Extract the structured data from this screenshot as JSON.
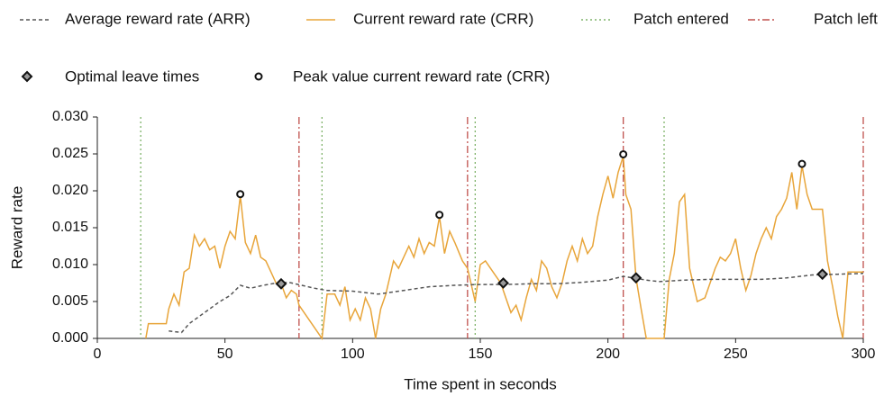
{
  "chart_data": {
    "type": "line",
    "x_label": "Time spent in seconds",
    "y_label": "Reward rate",
    "xlim": [
      0,
      300
    ],
    "ylim": [
      0,
      0.03
    ],
    "xticks": [
      0,
      50,
      100,
      150,
      200,
      250,
      300
    ],
    "yticks": [
      {
        "value": 0,
        "label": "0.000"
      },
      {
        "value": 0.005,
        "label": "0.005"
      },
      {
        "value": 0.01,
        "label": "0.010"
      },
      {
        "value": 0.015,
        "label": "0.015"
      },
      {
        "value": 0.02,
        "label": "0.020"
      },
      {
        "value": 0.025,
        "label": "0.025"
      },
      {
        "value": 0.03,
        "label": "0.030"
      }
    ],
    "series": [
      {
        "name": "Average reward rate (ARR)",
        "color": "#555555",
        "dash": "4 3",
        "x": [
          28,
          33,
          36,
          40,
          44,
          48,
          52,
          56,
          60,
          65,
          70,
          75,
          80,
          85,
          90,
          100,
          110,
          120,
          130,
          140,
          150,
          160,
          170,
          180,
          190,
          200,
          206,
          210,
          215,
          220,
          230,
          240,
          250,
          260,
          270,
          280,
          290,
          300
        ],
        "values": [
          0.001,
          0.0008,
          0.002,
          0.003,
          0.004,
          0.005,
          0.0058,
          0.0072,
          0.0068,
          0.0072,
          0.0075,
          0.0076,
          0.0072,
          0.0068,
          0.0065,
          0.0064,
          0.006,
          0.0065,
          0.007,
          0.0072,
          0.0073,
          0.0073,
          0.0074,
          0.0074,
          0.0076,
          0.0079,
          0.0084,
          0.0082,
          0.0079,
          0.0077,
          0.0079,
          0.008,
          0.008,
          0.008,
          0.0082,
          0.0086,
          0.0087,
          0.0088
        ]
      },
      {
        "name": "Current reward rate (CRR)",
        "color": "#e8a53a",
        "dash": "none",
        "x": [
          19,
          20,
          27,
          28,
          30,
          32,
          34,
          36,
          38,
          40,
          42,
          44,
          46,
          48,
          50,
          52,
          54,
          56,
          58,
          60,
          62,
          64,
          66,
          68,
          70,
          72,
          74,
          76,
          78,
          79,
          88,
          90,
          93,
          95,
          97,
          99,
          101,
          103,
          105,
          107,
          109,
          111,
          113,
          116,
          118,
          120,
          122,
          124,
          126,
          128,
          130,
          132,
          134,
          136,
          138,
          140,
          143,
          145,
          146,
          148,
          150,
          152,
          154,
          156,
          158,
          160,
          162,
          164,
          166,
          168,
          170,
          172,
          174,
          176,
          178,
          180,
          182,
          184,
          186,
          188,
          190,
          192,
          194,
          196,
          198,
          200,
          202,
          204,
          206,
          207,
          209,
          211,
          213,
          215,
          222,
          224,
          226,
          228,
          230,
          232,
          235,
          238,
          240,
          242,
          244,
          246,
          248,
          250,
          252,
          254,
          256,
          258,
          260,
          262,
          264,
          266,
          268,
          270,
          272,
          274,
          276,
          278,
          280,
          284,
          286,
          288,
          290,
          292,
          294,
          300
        ],
        "values": [
          0,
          0.002,
          0.002,
          0.004,
          0.006,
          0.0045,
          0.009,
          0.0095,
          0.014,
          0.0125,
          0.0135,
          0.012,
          0.0125,
          0.0095,
          0.0125,
          0.0145,
          0.0135,
          0.0193,
          0.013,
          0.0115,
          0.014,
          0.011,
          0.0105,
          0.009,
          0.0075,
          0.0074,
          0.0055,
          0.0065,
          0.006,
          0.0045,
          0,
          0.006,
          0.006,
          0.0045,
          0.007,
          0.0025,
          0.004,
          0.0025,
          0.0055,
          0.004,
          0,
          0.004,
          0.006,
          0.0105,
          0.0095,
          0.011,
          0.0125,
          0.011,
          0.0135,
          0.0115,
          0.013,
          0.0125,
          0.0165,
          0.0115,
          0.0145,
          0.013,
          0.0105,
          0.0095,
          0.008,
          0.005,
          0.01,
          0.0105,
          0.0095,
          0.0085,
          0.0075,
          0.0055,
          0.0035,
          0.0045,
          0.0025,
          0.0055,
          0.008,
          0.0065,
          0.0105,
          0.0095,
          0.007,
          0.0055,
          0.0075,
          0.0105,
          0.0125,
          0.0105,
          0.0135,
          0.0115,
          0.0125,
          0.0165,
          0.0195,
          0.022,
          0.019,
          0.0225,
          0.0247,
          0.0195,
          0.0175,
          0.0082,
          0.004,
          0,
          0,
          0.008,
          0.0115,
          0.0185,
          0.0195,
          0.0095,
          0.005,
          0.0055,
          0.0075,
          0.0095,
          0.011,
          0.0105,
          0.0115,
          0.0135,
          0.0095,
          0.0065,
          0.0085,
          0.0115,
          0.0135,
          0.015,
          0.0135,
          0.0165,
          0.0175,
          0.019,
          0.0225,
          0.0175,
          0.0234,
          0.0195,
          0.0175,
          0.0175,
          0.0105,
          0.007,
          0.003,
          0,
          0.009,
          0.009
        ]
      }
    ],
    "vlines": [
      {
        "name": "Patch entered",
        "color": "#7fb36a",
        "dash": "2 3",
        "x": [
          17,
          88,
          148,
          222
        ]
      },
      {
        "name": "Patch left",
        "color": "#c0504d",
        "dash": "8 3 2 3",
        "x": [
          79,
          145,
          206,
          300
        ]
      }
    ],
    "markers": [
      {
        "name": "Optimal leave times",
        "shape": "diamond",
        "x": [
          72,
          159,
          211,
          284
        ],
        "values": [
          0.0074,
          0.0075,
          0.0082,
          0.0087
        ]
      },
      {
        "name": "Peak value current reward rate (CRR)",
        "shape": "circle",
        "x": [
          56,
          134,
          206,
          276
        ],
        "values": [
          0.0193,
          0.0165,
          0.0247,
          0.0234
        ]
      }
    ]
  }
}
